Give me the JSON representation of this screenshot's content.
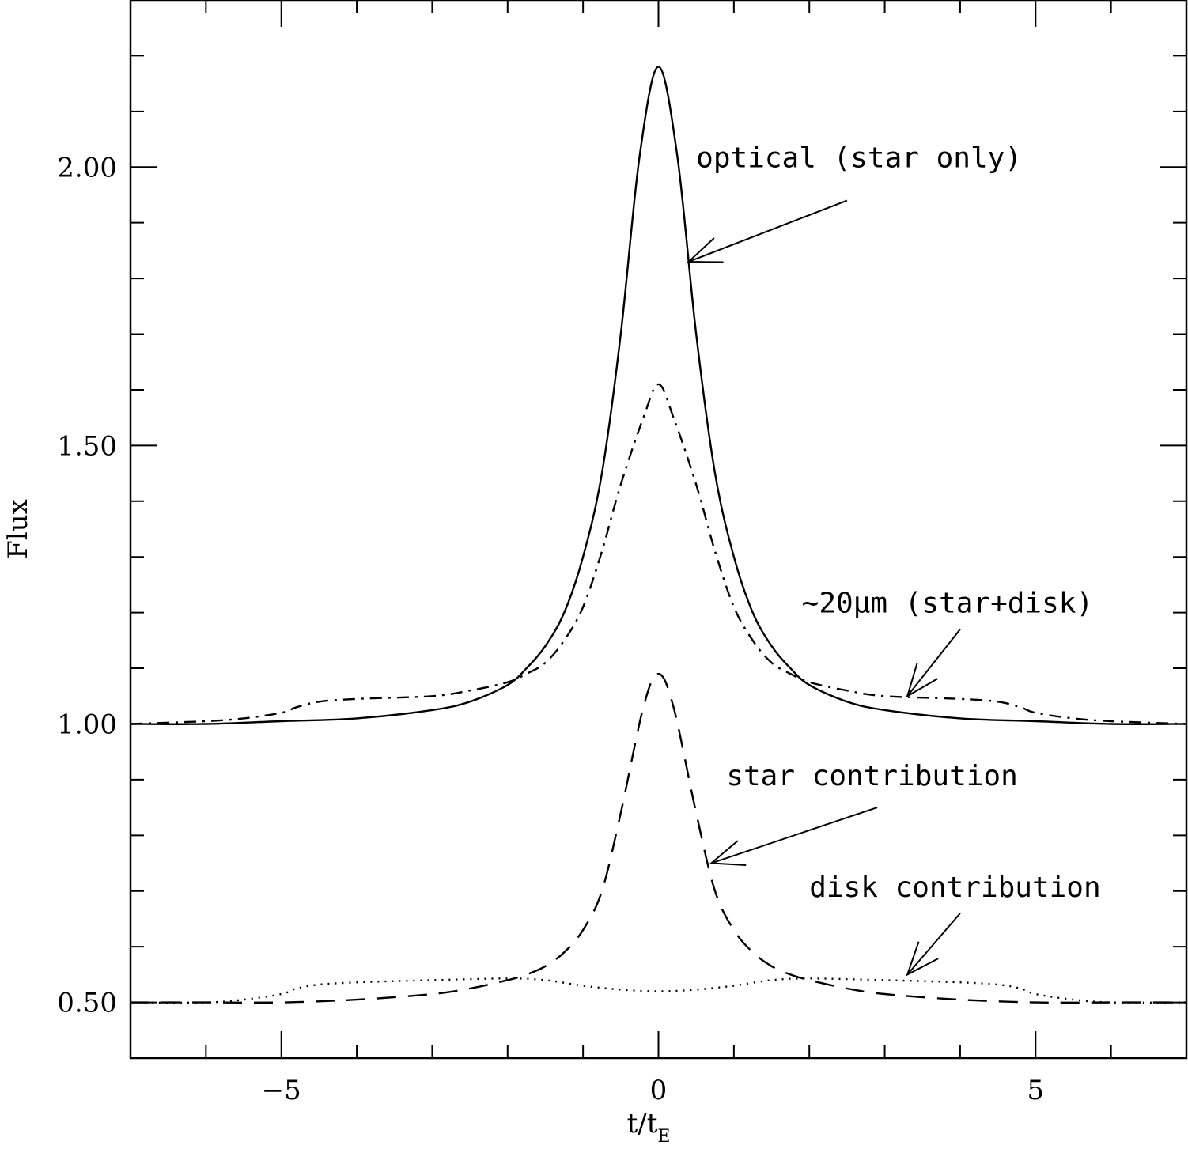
{
  "chart_data": {
    "type": "line",
    "xlabel": "t/t",
    "xlabel_sub": "E",
    "ylabel": "Flux",
    "xlim": [
      -7,
      7
    ],
    "ylim": [
      0.4,
      2.3
    ],
    "x_ticks": [
      -5,
      0,
      5
    ],
    "x_tick_labels": [
      "−5",
      "0",
      "5"
    ],
    "y_ticks": [
      0.5,
      1.0,
      1.5,
      2.0
    ],
    "y_tick_labels": [
      "0.50",
      "1.00",
      "1.50",
      "2.00"
    ],
    "x_minor_step": 1,
    "y_minor_step": 0.1,
    "grid": false,
    "legend": "none",
    "series": [
      {
        "label": "optical (star only)",
        "style": "solid",
        "x": [
          -7,
          -6,
          -5,
          -4,
          -3,
          -2.5,
          -2,
          -1.75,
          -1.5,
          -1.25,
          -1,
          -0.75,
          -0.5,
          -0.25,
          0,
          0.25,
          0.5,
          0.75,
          1,
          1.25,
          1.5,
          1.75,
          2,
          2.5,
          3,
          4,
          5,
          6,
          7
        ],
        "y": [
          1.0,
          1.0,
          1.005,
          1.01,
          1.025,
          1.04,
          1.07,
          1.1,
          1.14,
          1.2,
          1.3,
          1.45,
          1.7,
          2.02,
          2.18,
          2.02,
          1.7,
          1.45,
          1.3,
          1.2,
          1.14,
          1.1,
          1.07,
          1.04,
          1.025,
          1.01,
          1.005,
          1.0,
          1.0
        ]
      },
      {
        "label": "~20μm (star+disk)",
        "style": "dashdot",
        "x": [
          -7,
          -6,
          -5.5,
          -5,
          -4.8,
          -4.5,
          -4,
          -3,
          -2.5,
          -2,
          -1.75,
          -1.5,
          -1.25,
          -1,
          -0.75,
          -0.5,
          -0.2,
          0,
          0.2,
          0.5,
          0.75,
          1,
          1.25,
          1.5,
          1.75,
          2,
          2.5,
          3,
          4,
          4.5,
          4.8,
          5,
          5.5,
          6,
          7
        ],
        "y": [
          1.0,
          1.005,
          1.01,
          1.02,
          1.03,
          1.04,
          1.045,
          1.05,
          1.06,
          1.075,
          1.09,
          1.11,
          1.15,
          1.21,
          1.31,
          1.43,
          1.55,
          1.61,
          1.55,
          1.43,
          1.31,
          1.21,
          1.15,
          1.11,
          1.09,
          1.075,
          1.06,
          1.05,
          1.045,
          1.04,
          1.03,
          1.02,
          1.01,
          1.005,
          1.0
        ]
      },
      {
        "label": "star contribution",
        "style": "dashed",
        "x": [
          -7,
          -6,
          -5,
          -4,
          -3,
          -2.5,
          -2,
          -1.75,
          -1.5,
          -1.25,
          -1,
          -0.75,
          -0.5,
          -0.2,
          0,
          0.2,
          0.5,
          0.75,
          1,
          1.25,
          1.5,
          1.75,
          2,
          2.5,
          3,
          4,
          5,
          6,
          7
        ],
        "y": [
          0.5,
          0.5,
          0.5,
          0.505,
          0.515,
          0.525,
          0.54,
          0.55,
          0.565,
          0.59,
          0.63,
          0.7,
          0.84,
          1.03,
          1.09,
          1.03,
          0.84,
          0.7,
          0.63,
          0.59,
          0.565,
          0.55,
          0.54,
          0.525,
          0.515,
          0.505,
          0.5,
          0.5,
          0.5
        ]
      },
      {
        "label": "disk contribution",
        "style": "dotted",
        "x": [
          -7,
          -6,
          -5.5,
          -5,
          -4.8,
          -4.5,
          -4,
          -3,
          -2,
          -1.5,
          -1,
          -0.5,
          0,
          0.5,
          1,
          1.5,
          2,
          3,
          4,
          4.5,
          4.8,
          5,
          5.5,
          6,
          7
        ],
        "y": [
          0.5,
          0.5,
          0.505,
          0.515,
          0.525,
          0.532,
          0.536,
          0.54,
          0.543,
          0.54,
          0.53,
          0.523,
          0.52,
          0.523,
          0.53,
          0.54,
          0.543,
          0.54,
          0.536,
          0.532,
          0.525,
          0.515,
          0.505,
          0.5,
          0.5
        ]
      }
    ],
    "annotations": [
      {
        "text": "optical (star only)",
        "text_pos": [
          0.5,
          2.0
        ],
        "arrow_from": [
          2.5,
          1.94
        ],
        "arrow_to": [
          0.4,
          1.83
        ]
      },
      {
        "text": "~20μm (star+disk)",
        "text_pos": [
          1.9,
          1.2
        ],
        "arrow_from": [
          4.0,
          1.17
        ],
        "arrow_to": [
          3.3,
          1.05
        ]
      },
      {
        "text": "star contribution",
        "text_pos": [
          0.9,
          0.89
        ],
        "arrow_from": [
          2.9,
          0.85
        ],
        "arrow_to": [
          0.7,
          0.75
        ]
      },
      {
        "text": "disk contribution",
        "text_pos": [
          2.0,
          0.69
        ],
        "arrow_from": [
          4.0,
          0.66
        ],
        "arrow_to": [
          3.3,
          0.55
        ]
      }
    ]
  }
}
